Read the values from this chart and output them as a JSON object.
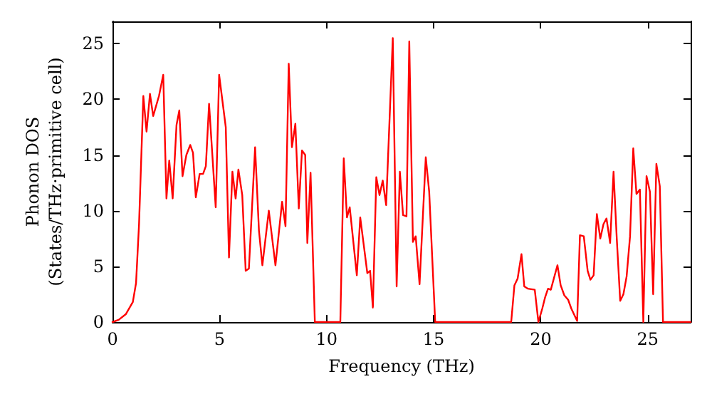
{
  "chart_data": {
    "type": "line",
    "xlabel": "Frequency (THz)",
    "ylabel": "Phonon DOS\n(States/THz·primitive cell)",
    "xlim": [
      0,
      27
    ],
    "xticks": [
      0,
      5,
      10,
      15,
      20,
      25
    ],
    "ylim": [
      0,
      27
    ],
    "yticks": [
      0,
      5,
      10,
      15,
      20,
      25
    ],
    "marker": "none",
    "line_style": "solid",
    "series": [
      {
        "color": "#ff0000",
        "x": [
          0,
          0.29,
          0.62,
          0.95,
          1.1,
          1.24,
          1.44,
          1.59,
          1.75,
          1.9,
          2.17,
          2.37,
          2.52,
          2.65,
          2.81,
          2.99,
          3.12,
          3.27,
          3.45,
          3.63,
          3.76,
          3.89,
          4.07,
          4.23,
          4.36,
          4.51,
          4.82,
          4.98,
          5.29,
          5.44,
          5.6,
          5.75,
          5.88,
          6.06,
          6.22,
          6.37,
          6.66,
          6.84,
          7.0,
          7.3,
          7.61,
          7.92,
          8.08,
          8.23,
          8.38,
          8.54,
          8.7,
          8.85,
          9.0,
          9.1,
          9.25,
          9.45,
          10.64,
          10.8,
          10.95,
          11.08,
          11.41,
          11.57,
          11.9,
          12.03,
          12.16,
          12.32,
          12.47,
          12.62,
          12.78,
          13.09,
          13.27,
          13.42,
          13.57,
          13.73,
          13.86,
          14.03,
          14.16,
          14.34,
          14.63,
          14.79,
          15.07,
          18.62,
          18.77,
          18.92,
          19.1,
          19.23,
          19.39,
          19.72,
          19.89,
          20.07,
          20.2,
          20.34,
          20.47,
          20.78,
          20.93,
          21.1,
          21.28,
          21.43,
          21.7,
          21.83,
          22.01,
          22.19,
          22.32,
          22.47,
          22.62,
          22.78,
          22.93,
          23.07,
          23.24,
          23.4,
          23.55,
          23.71,
          23.86,
          24.01,
          24.17,
          24.32,
          24.47,
          24.63,
          24.79,
          24.94,
          25.1,
          25.25,
          25.4,
          25.56,
          25.71,
          27
        ],
        "values": [
          0,
          0.2,
          0.7,
          1.8,
          3.5,
          8.8,
          20.3,
          17.1,
          20.5,
          18.5,
          20.3,
          22.2,
          11.1,
          14.5,
          11.1,
          17.7,
          19.0,
          13.1,
          15.0,
          15.9,
          15.2,
          11.2,
          13.3,
          13.3,
          14.0,
          19.6,
          10.3,
          22.2,
          17.5,
          5.8,
          13.5,
          11.1,
          13.7,
          11.4,
          4.6,
          4.8,
          15.7,
          8.2,
          5.1,
          10.0,
          5.1,
          10.8,
          8.6,
          23.2,
          15.7,
          17.8,
          10.2,
          15.4,
          15.0,
          7.1,
          13.4,
          0,
          0,
          14.7,
          9.4,
          10.3,
          4.2,
          9.4,
          4.4,
          4.6,
          1.3,
          13.0,
          11.4,
          12.7,
          10.5,
          25.5,
          3.2,
          13.5,
          9.6,
          9.5,
          25.2,
          7.2,
          7.7,
          3.4,
          14.8,
          11.7,
          0,
          0,
          3.3,
          3.9,
          6.1,
          3.2,
          3.0,
          2.9,
          0,
          1.2,
          2.2,
          3.0,
          2.9,
          5.1,
          3.3,
          2.4,
          2.0,
          1.2,
          0.1,
          7.8,
          7.7,
          4.6,
          3.8,
          4.2,
          9.7,
          7.5,
          8.8,
          9.3,
          7.1,
          13.5,
          7.5,
          1.9,
          2.5,
          4.1,
          7.7,
          15.6,
          11.5,
          11.9,
          0,
          13.1,
          11.7,
          2.5,
          14.2,
          12.2,
          0,
          0
        ]
      }
    ]
  }
}
